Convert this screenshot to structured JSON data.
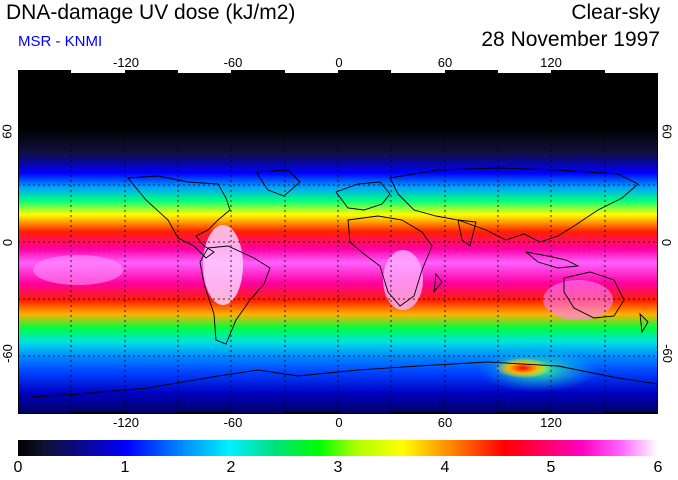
{
  "header": {
    "title": "DNA-damage UV dose (kJ/m2)",
    "subtitle": "MSR - KNMI",
    "sky_condition": "Clear-sky",
    "date": "28 November 1997"
  },
  "map": {
    "longitude_ticks": [
      "-120",
      "-60",
      "0",
      "60",
      "120"
    ],
    "latitude_ticks": [
      "60",
      "0",
      "-60"
    ],
    "lon_range": [
      -180,
      180
    ],
    "lat_range": [
      -90,
      90
    ]
  },
  "colorbar": {
    "labels": [
      "0",
      "1",
      "2",
      "3",
      "4",
      "5",
      "6"
    ],
    "min": 0,
    "max": 6,
    "unit": "kJ/m2"
  },
  "colors": {
    "title_text": "#000000",
    "subtitle_text": "#0000ff"
  }
}
